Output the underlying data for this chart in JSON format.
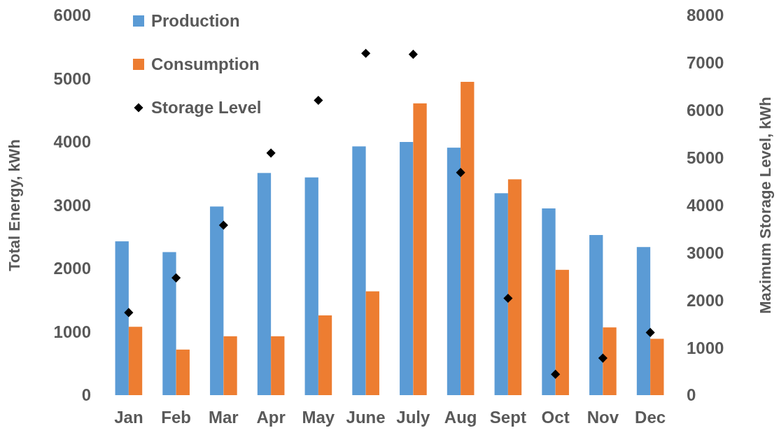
{
  "chart_data": {
    "type": "bar",
    "ylabel": "Total Energy, kWh",
    "y2label": "Maximum Storage Level, kWh",
    "categories": [
      "Jan",
      "Feb",
      "Mar",
      "Apr",
      "May",
      "June",
      "July",
      "Aug",
      "Sept",
      "Oct",
      "Nov",
      "Dec"
    ],
    "series": [
      {
        "name": "Production",
        "color": "#5b9bd5",
        "values": [
          2430,
          2260,
          2980,
          3510,
          3440,
          3930,
          4000,
          3910,
          3190,
          2950,
          2530,
          2340
        ]
      },
      {
        "name": "Consumption",
        "color": "#ed7d31",
        "values": [
          1080,
          720,
          930,
          930,
          1260,
          1640,
          4610,
          4950,
          3410,
          1980,
          1070,
          890
        ]
      },
      {
        "name": "Storage Level",
        "type": "scatter",
        "axis": "y2",
        "marker": "diamond",
        "color": "#000000",
        "values": [
          1740,
          2470,
          3580,
          5100,
          6210,
          7200,
          7180,
          4690,
          2040,
          440,
          780,
          1320
        ]
      }
    ],
    "ylim": [
      0,
      6000
    ],
    "yticks": [
      0,
      1000,
      2000,
      3000,
      4000,
      5000,
      6000
    ],
    "y2lim": [
      0,
      8000
    ],
    "y2ticks": [
      0,
      1000,
      2000,
      3000,
      4000,
      5000,
      6000,
      7000,
      8000
    ],
    "grid": false,
    "legend": "top left"
  }
}
